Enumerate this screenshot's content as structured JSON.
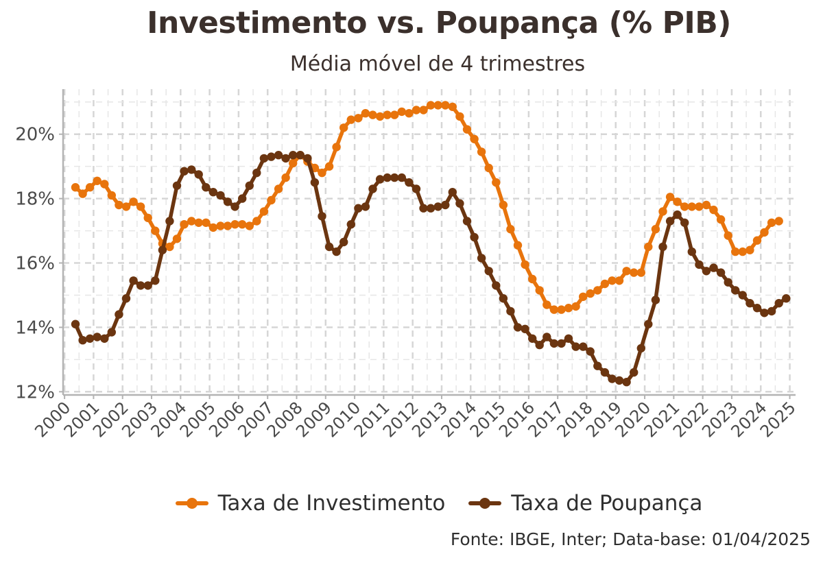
{
  "chart_data": {
    "type": "line",
    "title": "Investimento vs. Poupança (% PIB)",
    "subtitle": "Média móvel de 4 trimestres",
    "caption": "Fonte: IBGE, Inter; Data-base: 01/04/2025",
    "xlabel": "",
    "ylabel": "",
    "x_ticks": [
      "2000",
      "2001",
      "2002",
      "2003",
      "2004",
      "2005",
      "2006",
      "2007",
      "2008",
      "2009",
      "2010",
      "2011",
      "2012",
      "2013",
      "2014",
      "2015",
      "2016",
      "2017",
      "2018",
      "2019",
      "2020",
      "2021",
      "2022",
      "2023",
      "2024",
      "2025"
    ],
    "y_ticks": [
      12,
      14,
      16,
      18,
      20
    ],
    "y_tick_labels": [
      "12%",
      "14%",
      "16%",
      "18%",
      "20%"
    ],
    "xlim": [
      1999.95,
      2025.2
    ],
    "ylim": [
      11.9,
      21.4
    ],
    "grid": true,
    "legend_position": "bottom",
    "x_start": 2000.375,
    "x_step": 0.25,
    "series": [
      {
        "name": "Taxa de Investimento",
        "color": "#E8740C",
        "values": [
          18.35,
          18.15,
          18.35,
          18.55,
          18.45,
          18.1,
          17.8,
          17.75,
          17.9,
          17.75,
          17.4,
          17.0,
          16.6,
          16.5,
          16.75,
          17.2,
          17.3,
          17.25,
          17.25,
          17.1,
          17.15,
          17.15,
          17.2,
          17.2,
          17.15,
          17.3,
          17.6,
          17.95,
          18.3,
          18.65,
          19.1,
          19.35,
          19.15,
          18.95,
          18.8,
          19.0,
          19.6,
          20.2,
          20.45,
          20.5,
          20.65,
          20.6,
          20.55,
          20.6,
          20.6,
          20.7,
          20.65,
          20.75,
          20.75,
          20.9,
          20.9,
          20.9,
          20.85,
          20.55,
          20.15,
          19.85,
          19.45,
          18.95,
          18.5,
          17.8,
          17.05,
          16.55,
          15.95,
          15.5,
          15.15,
          14.7,
          14.55,
          14.55,
          14.6,
          14.65,
          14.95,
          15.05,
          15.15,
          15.35,
          15.45,
          15.45,
          15.75,
          15.7,
          15.7,
          16.5,
          17.05,
          17.6,
          18.05,
          17.9,
          17.75,
          17.75,
          17.75,
          17.8,
          17.65,
          17.35,
          16.85,
          16.35,
          16.35,
          16.4,
          16.7,
          16.95,
          17.25,
          17.3
        ]
      },
      {
        "name": "Taxa de Poupança",
        "color": "#6B3510",
        "values": [
          14.1,
          13.6,
          13.65,
          13.7,
          13.65,
          13.85,
          14.4,
          14.9,
          15.45,
          15.3,
          15.3,
          15.45,
          16.4,
          17.3,
          18.4,
          18.85,
          18.9,
          18.75,
          18.35,
          18.2,
          18.1,
          17.9,
          17.75,
          18.0,
          18.4,
          18.8,
          19.25,
          19.3,
          19.35,
          19.25,
          19.35,
          19.35,
          19.25,
          18.5,
          17.45,
          16.5,
          16.35,
          16.65,
          17.2,
          17.7,
          17.75,
          18.3,
          18.6,
          18.65,
          18.65,
          18.65,
          18.5,
          18.3,
          17.7,
          17.7,
          17.75,
          17.8,
          18.2,
          17.85,
          17.3,
          16.8,
          16.15,
          15.75,
          15.3,
          14.9,
          14.5,
          14.0,
          13.95,
          13.65,
          13.45,
          13.7,
          13.5,
          13.5,
          13.65,
          13.4,
          13.4,
          13.25,
          12.8,
          12.6,
          12.4,
          12.35,
          12.3,
          12.6,
          13.35,
          14.1,
          14.85,
          16.5,
          17.3,
          17.5,
          17.25,
          16.35,
          15.95,
          15.75,
          15.85,
          15.7,
          15.4,
          15.15,
          15.0,
          14.75,
          14.6,
          14.45,
          14.5,
          14.75,
          14.9
        ]
      }
    ]
  }
}
